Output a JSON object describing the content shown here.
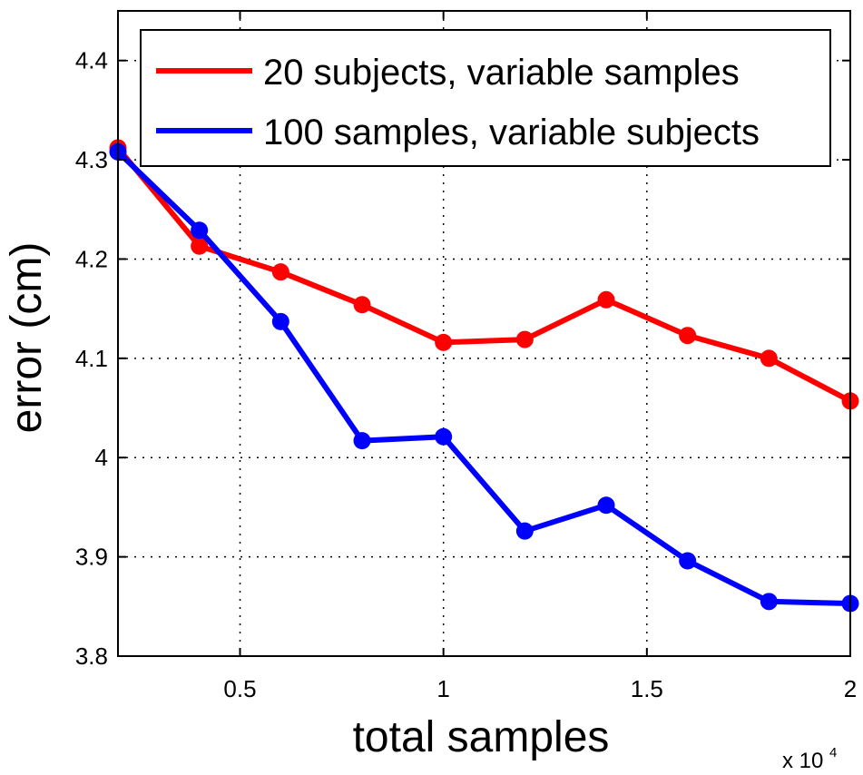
{
  "chart_data": {
    "type": "line",
    "xlabel": "total samples",
    "ylabel": "error (cm)",
    "x_multiplier": {
      "base": "x 10",
      "exponent": "4"
    },
    "xlim": [
      2000,
      20000
    ],
    "ylim": [
      3.8,
      4.45
    ],
    "xticks": [
      5000,
      10000,
      15000,
      20000
    ],
    "xtick_labels": [
      "0.5",
      "1",
      "1.5",
      "2"
    ],
    "yticks": [
      3.8,
      3.9,
      4.0,
      4.1,
      4.2,
      4.3,
      4.4
    ],
    "ytick_labels": [
      "3.8",
      "3.9",
      "4",
      "4.1",
      "4.2",
      "4.3",
      "4.4"
    ],
    "grid": true,
    "legend_position": "top-right",
    "series": [
      {
        "name": "20 subjects, variable samples",
        "color": "#ff0000",
        "x": [
          2000,
          4000,
          6000,
          8000,
          10000,
          12000,
          14000,
          16000,
          18000,
          20000
        ],
        "y": [
          4.312,
          4.213,
          4.187,
          4.154,
          4.116,
          4.119,
          4.159,
          4.123,
          4.1,
          4.057
        ]
      },
      {
        "name": "100 samples, variable subjects",
        "color": "#0000ff",
        "x": [
          2000,
          4000,
          6000,
          8000,
          10000,
          12000,
          14000,
          16000,
          18000,
          20000
        ],
        "y": [
          4.308,
          4.229,
          4.137,
          4.017,
          4.021,
          3.926,
          3.952,
          3.896,
          3.855,
          3.853
        ]
      }
    ]
  }
}
